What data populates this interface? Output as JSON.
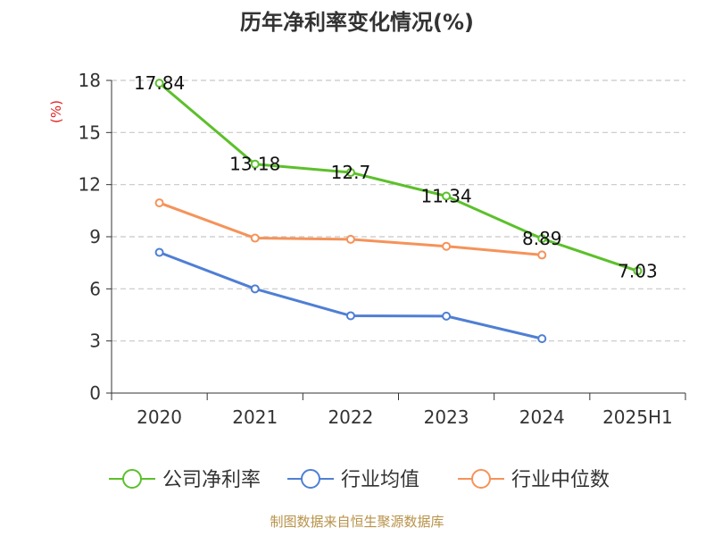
{
  "chart_data": {
    "type": "line",
    "title": "历年净利率变化情况(%)",
    "ylabel": "(%)",
    "categories": [
      "2020",
      "2021",
      "2022",
      "2023",
      "2024",
      "2025H1"
    ],
    "ylim": [
      0,
      18
    ],
    "yticks": [
      0,
      3,
      6,
      9,
      12,
      15,
      18
    ],
    "grid": true,
    "legend_position": "bottom",
    "series": [
      {
        "name": "公司净利率",
        "color": "#5cc02b",
        "values": [
          17.84,
          13.18,
          12.7,
          11.34,
          8.89,
          7.03
        ],
        "labels": [
          "17.84",
          "13.18",
          "12.7",
          "11.34",
          "8.89",
          "7.03"
        ]
      },
      {
        "name": "行业均值",
        "color": "#4f7fd4",
        "values": [
          8.1,
          6.0,
          4.45,
          4.43,
          3.13,
          null
        ]
      },
      {
        "name": "行业中位数",
        "color": "#f5935a",
        "values": [
          10.95,
          8.92,
          8.85,
          8.45,
          7.95,
          null
        ]
      }
    ]
  },
  "source": "制图数据来自恒生聚源数据库"
}
